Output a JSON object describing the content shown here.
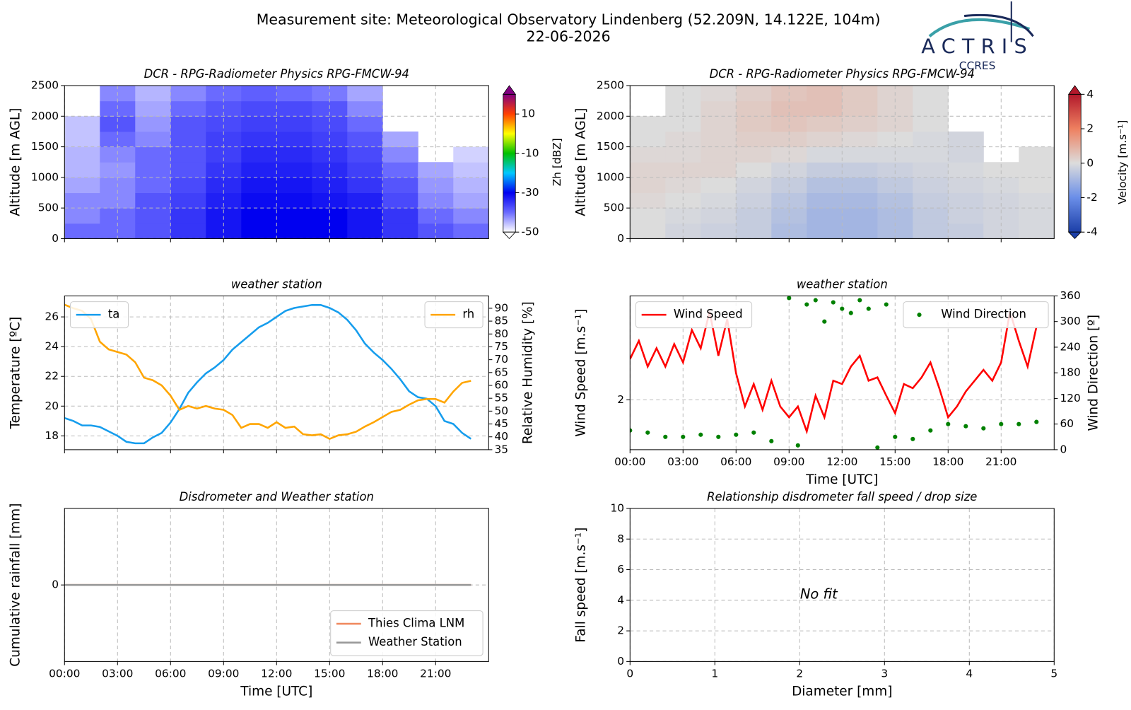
{
  "header": {
    "title": "Measurement site: Meteorological Observatory Lindenberg (52.209N, 14.122E, 104m)",
    "date": "22-06-2026",
    "logo": "ACTRIS",
    "logo_sub": "CCRES"
  },
  "chart_data": [
    {
      "type": "heatmap",
      "title": "DCR - RPG-Radiometer Physics RPG-FMCW-94",
      "ylabel": "Altitude [m AGL]",
      "clabel": "Zh [dBZ]",
      "xlim": [
        0,
        24
      ],
      "xticks": [
        0,
        3,
        6,
        9,
        12,
        15,
        18,
        21
      ],
      "show_xticklabels": false,
      "ylim": [
        0,
        2500
      ],
      "yticks": [
        0,
        500,
        1000,
        1500,
        2000,
        2500
      ],
      "grid": true,
      "clim": [
        -50,
        20
      ],
      "cticks": [
        -50,
        -30,
        -10,
        10
      ],
      "colormap": [
        "#ffffff",
        "#6a6aff",
        "#0000f0",
        "#00c8ff",
        "#00c000",
        "#ffff00",
        "#ff4000",
        "#800080"
      ],
      "x_bins": [
        0,
        2,
        4,
        6,
        8,
        10,
        12,
        14,
        16,
        18,
        20,
        22,
        24
      ],
      "y_bins": [
        0,
        250,
        500,
        750,
        1000,
        1250,
        1500,
        1750,
        2000,
        2250,
        2500
      ],
      "z": [
        [
          -40,
          -40,
          -38,
          -35,
          -32,
          -30,
          -30,
          -30,
          -32,
          -35,
          -38,
          -40
        ],
        [
          -42,
          -40,
          -38,
          -35,
          -32,
          -30,
          -30,
          -30,
          -32,
          -35,
          -40,
          -42
        ],
        [
          -42,
          -42,
          -38,
          -36,
          -33,
          -31,
          -31,
          -32,
          -33,
          -37,
          -42,
          -44
        ],
        [
          -44,
          -42,
          -40,
          -37,
          -34,
          -32,
          -32,
          -33,
          -35,
          -38,
          -43,
          -45
        ],
        [
          -45,
          -43,
          -40,
          -38,
          -35,
          -33,
          -33,
          -34,
          -36,
          -40,
          -44,
          -46
        ],
        [
          -45,
          -42,
          -40,
          -38,
          -36,
          -34,
          -34,
          -35,
          -37,
          -42,
          null,
          -47
        ],
        [
          -46,
          -40,
          -42,
          -38,
          -36,
          -35,
          -35,
          -36,
          -38,
          -44,
          null,
          null
        ],
        [
          -46,
          -38,
          -43,
          -38,
          -37,
          -36,
          -36,
          -37,
          -40,
          null,
          null,
          null
        ],
        [
          null,
          -40,
          -44,
          -40,
          -38,
          -37,
          -37,
          -38,
          -42,
          null,
          null,
          null
        ],
        [
          null,
          -42,
          -45,
          -42,
          -40,
          -39,
          -40,
          -41,
          -44,
          null,
          null,
          null
        ]
      ]
    },
    {
      "type": "heatmap",
      "title": "DCR - RPG-Radiometer Physics RPG-FMCW-94",
      "ylabel": "Altitude [m AGL]",
      "clabel": "Velocity [m.s⁻¹]",
      "xlim": [
        0,
        24
      ],
      "xticks": [
        0,
        3,
        6,
        9,
        12,
        15,
        18,
        21
      ],
      "show_xticklabels": false,
      "ylim": [
        0,
        2500
      ],
      "yticks": [
        0,
        500,
        1000,
        1500,
        2000,
        2500
      ],
      "grid": true,
      "clim": [
        -4,
        4
      ],
      "cticks": [
        -4,
        -2,
        0,
        2,
        4
      ],
      "colormap": [
        "#1c3fa8",
        "#6a8ee8",
        "#dcdcdc",
        "#ee8060",
        "#b2182b"
      ],
      "x_bins": [
        0,
        2,
        4,
        6,
        8,
        10,
        12,
        14,
        16,
        18,
        20,
        22,
        24
      ],
      "y_bins": [
        0,
        250,
        500,
        750,
        1000,
        1250,
        1500,
        1750,
        2000,
        2250,
        2500
      ],
      "z": [
        [
          0,
          -0.2,
          -0.3,
          -0.4,
          -0.8,
          -1,
          -1,
          -0.8,
          -0.5,
          -0.4,
          -0.2,
          -0.1
        ],
        [
          0,
          -0.1,
          -0.2,
          -0.4,
          -0.7,
          -1,
          -1,
          -0.8,
          -0.5,
          -0.3,
          -0.2,
          -0.1
        ],
        [
          0.1,
          0,
          -0.1,
          -0.3,
          -0.6,
          -0.9,
          -0.9,
          -0.7,
          -0.4,
          -0.3,
          -0.2,
          -0.1
        ],
        [
          0.2,
          0.1,
          0,
          -0.2,
          -0.4,
          -0.7,
          -0.7,
          -0.5,
          -0.3,
          -0.2,
          -0.1,
          0
        ],
        [
          0.2,
          0.2,
          0.2,
          0,
          -0.2,
          -0.4,
          -0.4,
          -0.3,
          -0.2,
          -0.1,
          0,
          0
        ],
        [
          0.1,
          0.1,
          0.2,
          0.2,
          0.1,
          -0.1,
          -0.1,
          -0.1,
          -0.1,
          -0.2,
          null,
          0
        ],
        [
          0,
          0.1,
          0.2,
          0.3,
          0.3,
          0.2,
          0.1,
          0,
          -0.1,
          -0.2,
          null,
          null
        ],
        [
          0,
          0,
          0.2,
          0.4,
          0.5,
          0.4,
          0.3,
          0.2,
          0,
          null,
          null,
          null
        ],
        [
          null,
          0,
          0.2,
          0.4,
          0.6,
          0.6,
          0.4,
          0.2,
          0,
          null,
          null,
          null
        ],
        [
          null,
          0,
          0.1,
          0.3,
          0.5,
          0.6,
          0.4,
          0.2,
          0,
          null,
          null,
          null
        ]
      ]
    },
    {
      "type": "line",
      "title": "weather station",
      "ylabel": "Temperature [ºC]",
      "y2label": "Relative Humidity [%]",
      "xlim": [
        0,
        24
      ],
      "xticks": [
        0,
        3,
        6,
        9,
        12,
        15,
        18,
        21
      ],
      "show_xticklabels": false,
      "ylim": [
        17.07,
        27.41
      ],
      "yticks": [
        18,
        20,
        22,
        24,
        26
      ],
      "y2lim": [
        35,
        94.8
      ],
      "y2ticks": [
        35,
        40,
        45,
        50,
        55,
        60,
        65,
        70,
        75,
        80,
        85,
        90
      ],
      "grid": true,
      "series": [
        {
          "name": "ta",
          "color": "#169ded",
          "legend_loc": "upper left",
          "x": [
            0,
            0.5,
            1,
            1.5,
            2,
            2.5,
            3,
            3.5,
            4,
            4.5,
            5,
            5.5,
            6,
            6.5,
            7,
            7.5,
            8,
            8.5,
            9,
            9.5,
            10,
            10.5,
            11,
            11.5,
            12,
            12.5,
            13,
            13.5,
            14,
            14.5,
            15,
            15.5,
            16,
            16.5,
            17,
            17.5,
            18,
            18.5,
            19,
            19.5,
            20,
            20.5,
            21,
            21.5,
            22,
            22.5,
            23
          ],
          "values": [
            19.2,
            19.0,
            18.7,
            18.7,
            18.6,
            18.3,
            18.0,
            17.6,
            17.5,
            17.5,
            17.9,
            18.2,
            18.9,
            19.8,
            20.9,
            21.6,
            22.2,
            22.6,
            23.1,
            23.8,
            24.3,
            24.8,
            25.3,
            25.6,
            26.0,
            26.4,
            26.6,
            26.7,
            26.8,
            26.8,
            26.6,
            26.3,
            25.8,
            25.1,
            24.2,
            23.6,
            23.1,
            22.5,
            21.8,
            21.0,
            20.6,
            20.5,
            20.0,
            19.0,
            18.8,
            18.2,
            17.8
          ]
        },
        {
          "name": "rh",
          "color": "#ffa500",
          "axis": "y2",
          "legend_loc": "upper right",
          "x": [
            0,
            0.5,
            1,
            1.5,
            2,
            2.5,
            3,
            3.5,
            4,
            4.5,
            5,
            5.5,
            6,
            6.5,
            7,
            7.5,
            8,
            8.5,
            9,
            9.5,
            10,
            10.5,
            11,
            11.5,
            12,
            12.5,
            13,
            13.5,
            14,
            14.5,
            15,
            15.5,
            16,
            16.5,
            17,
            17.5,
            18,
            18.5,
            19,
            19.5,
            20,
            20.5,
            21,
            21.5,
            22,
            22.5,
            23
          ],
          "values": [
            91.4,
            90,
            89,
            85.8,
            77,
            74,
            73,
            72,
            69,
            63,
            62,
            60,
            56,
            50.5,
            52,
            51,
            52,
            51,
            50.5,
            48.5,
            43.5,
            45,
            45,
            43.5,
            45.7,
            43.5,
            44,
            41,
            40.6,
            41,
            39.2,
            40.6,
            41,
            42,
            44,
            45.7,
            47.7,
            49.7,
            50.5,
            52.5,
            54.2,
            54.7,
            54.7,
            53.3,
            57.6,
            61,
            61.8
          ]
        }
      ]
    },
    {
      "type": "line",
      "title": "weather station",
      "ylabel": "Wind Speed [m.s⁻¹]",
      "y2label": "Wind Direction [º]",
      "xlabel": "Time [UTC]",
      "xlim": [
        0,
        24
      ],
      "xticks": [
        {
          "value": 0,
          "label": "00:00"
        },
        {
          "value": 3,
          "label": "03:00"
        },
        {
          "value": 6,
          "label": "06:00"
        },
        {
          "value": 9,
          "label": "09:00"
        },
        {
          "value": 12,
          "label": "12:00"
        },
        {
          "value": 15,
          "label": "15:00"
        },
        {
          "value": 18,
          "label": "18:00"
        },
        {
          "value": 21,
          "label": "21:00"
        }
      ],
      "ylim": [
        1.4,
        3.25
      ],
      "yticks": [
        2
      ],
      "y2lim": [
        0,
        360
      ],
      "y2ticks": [
        0,
        60,
        120,
        180,
        240,
        300,
        360
      ],
      "grid": true,
      "series": [
        {
          "name": "Wind Speed",
          "color": "#ff0000",
          "legend_loc": "upper left",
          "x": [
            0,
            0.5,
            1,
            1.5,
            2,
            2.5,
            3,
            3.5,
            4,
            4.5,
            5,
            5.5,
            6,
            6.5,
            7,
            7.5,
            8,
            8.5,
            9,
            9.5,
            10,
            10.5,
            11,
            11.5,
            12,
            12.5,
            13,
            13.5,
            14,
            14.5,
            15,
            15.5,
            16,
            16.5,
            17,
            17.5,
            18,
            18.5,
            19,
            19.5,
            20,
            20.5,
            21,
            21.5,
            22,
            22.5,
            23
          ],
          "values": [
            2.49,
            2.71,
            2.4,
            2.62,
            2.4,
            2.67,
            2.45,
            2.84,
            2.62,
            3.06,
            2.53,
            2.97,
            2.32,
            1.92,
            2.19,
            1.88,
            2.23,
            1.92,
            1.79,
            1.92,
            1.62,
            2.05,
            1.79,
            2.23,
            2.19,
            2.4,
            2.53,
            2.23,
            2.27,
            2.05,
            1.84,
            2.19,
            2.14,
            2.27,
            2.45,
            2.14,
            1.79,
            1.92,
            2.1,
            2.23,
            2.36,
            2.23,
            2.45,
            3.06,
            2.71,
            2.4,
            2.88
          ]
        },
        {
          "name": "Wind Direction",
          "color": "#008000",
          "axis": "y2",
          "mode": "markers",
          "legend_loc": "upper right",
          "x": [
            0,
            1,
            2,
            3,
            4,
            5,
            6,
            7,
            8,
            9,
            9.5,
            10,
            10.5,
            11,
            11.5,
            12,
            12.5,
            13,
            13.5,
            14,
            14.5,
            15,
            16,
            17,
            18,
            19,
            20,
            21,
            22,
            23
          ],
          "values": [
            45,
            40,
            30,
            30,
            35,
            30,
            35,
            40,
            20,
            355,
            10,
            340,
            350,
            300,
            345,
            330,
            320,
            350,
            330,
            5,
            340,
            30,
            25,
            45,
            60,
            55,
            50,
            60,
            60,
            65
          ]
        }
      ]
    },
    {
      "type": "line",
      "title": "Disdrometer and Weather station",
      "ylabel": "Cumulative rainfall [mm]",
      "xlabel": "Time [UTC]",
      "xlim": [
        0,
        24
      ],
      "xticks": [
        {
          "value": 0,
          "label": "00:00"
        },
        {
          "value": 3,
          "label": "03:00"
        },
        {
          "value": 6,
          "label": "06:00"
        },
        {
          "value": 9,
          "label": "09:00"
        },
        {
          "value": 12,
          "label": "12:00"
        },
        {
          "value": 15,
          "label": "15:00"
        },
        {
          "value": 18,
          "label": "18:00"
        },
        {
          "value": 21,
          "label": "21:00"
        }
      ],
      "ylim": [
        -0.055,
        0.055
      ],
      "yticks": [
        0
      ],
      "grid": true,
      "series": [
        {
          "name": "Thies Clima LNM",
          "color": "#f08a60",
          "legend_loc": "lower right",
          "x": [
            0,
            1,
            2,
            3,
            4,
            5,
            6,
            7,
            8,
            9,
            10,
            11,
            12,
            13,
            14,
            15,
            16,
            17,
            18,
            19,
            20,
            21,
            22,
            23
          ],
          "values": [
            0,
            0,
            0,
            0,
            0,
            0,
            0,
            0,
            0,
            0,
            0,
            0,
            0,
            0,
            0,
            0,
            0,
            0,
            0,
            0,
            0,
            0,
            0,
            0
          ]
        },
        {
          "name": "Weather Station",
          "color": "#999999",
          "legend_loc": "lower right",
          "x": [
            0,
            1,
            2,
            3,
            4,
            5,
            6,
            7,
            8,
            9,
            10,
            11,
            12,
            13,
            14,
            15,
            16,
            17,
            18,
            19,
            20,
            21,
            22,
            23
          ],
          "values": [
            0,
            0,
            0,
            0,
            0,
            0,
            0,
            0,
            0,
            0,
            0,
            0,
            0,
            0,
            0,
            0,
            0,
            0,
            0,
            0,
            0,
            0,
            0,
            0
          ]
        }
      ]
    },
    {
      "type": "scatter",
      "title": "Relationship disdrometer fall speed / drop size",
      "ylabel": "Fall speed [m.s⁻¹]",
      "xlabel": "Diameter [mm]",
      "xlim": [
        0,
        5
      ],
      "xticks": [
        0,
        1,
        2,
        3,
        4,
        5
      ],
      "ylim": [
        0,
        10
      ],
      "yticks": [
        0,
        2,
        4,
        6,
        8,
        10
      ],
      "grid": true,
      "annotation": "No fit"
    }
  ]
}
